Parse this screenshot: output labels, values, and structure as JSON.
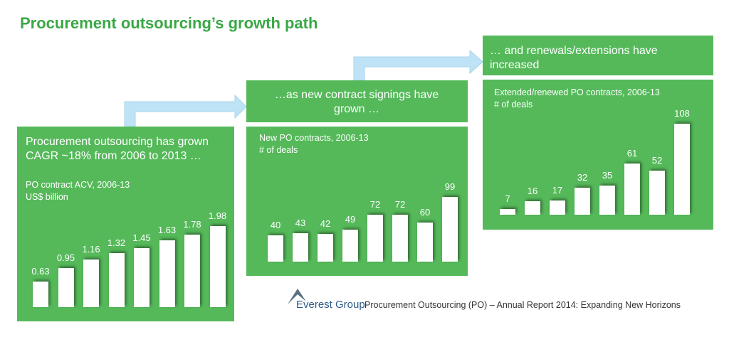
{
  "title": "Procurement outsourcing’s growth path",
  "brand": "Everest Group",
  "footer": "Procurement Outsourcing (PO) – Annual Report 2014: Expanding New Horizons",
  "chart_data": [
    {
      "type": "bar",
      "header": "Procurement outsourcing has grown CAGR ~18% from 2006 to 2013 …",
      "subtitle": "PO contract ACV, 2006-13",
      "unit": "US$ billion",
      "color": "#ffffff",
      "values": [
        0.63,
        0.95,
        1.16,
        1.32,
        1.45,
        1.63,
        1.78,
        1.98
      ]
    },
    {
      "type": "bar",
      "header": "…as new contract signings have grown …",
      "subtitle": "New PO contracts,  2006-13",
      "unit": "# of deals",
      "color": "#ffffff",
      "values": [
        40,
        43,
        42,
        49,
        72,
        72,
        60,
        99
      ]
    },
    {
      "type": "bar",
      "header": "… and renewals/extensions have increased",
      "subtitle": "Extended/renewed PO contracts,  2006-13",
      "unit": "# of deals",
      "color": "#ffffff",
      "values": [
        7,
        16,
        17,
        32,
        35,
        61,
        52,
        108
      ]
    }
  ]
}
